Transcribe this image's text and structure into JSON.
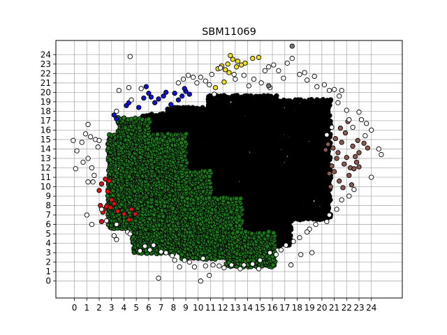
{
  "chart_data": {
    "type": "scatter",
    "title": "SBM11069",
    "xlabel": "",
    "ylabel": "",
    "xlim": [
      -1.5,
      26.5
    ],
    "ylim": [
      -1.8,
      25.5
    ],
    "xticks": [
      0,
      1,
      2,
      3,
      4,
      5,
      6,
      7,
      8,
      9,
      10,
      11,
      12,
      13,
      14,
      15,
      16,
      17,
      18,
      19,
      20,
      21,
      22,
      23,
      24
    ],
    "yticks": [
      0,
      1,
      2,
      3,
      4,
      5,
      6,
      7,
      8,
      9,
      10,
      11,
      12,
      13,
      14,
      15,
      16,
      17,
      18,
      19,
      20,
      21,
      22,
      23,
      24
    ],
    "grid": true,
    "legend": "none",
    "colors": {
      "black": "#000000",
      "green": "#1a7a1a",
      "blue": "#1010d0",
      "yellow": "#f0e020",
      "red": "#e01010",
      "brown": "#8c5a50",
      "white": "#ffffff",
      "gray": "#777777",
      "grid": "#b0b0b0"
    },
    "series": [
      {
        "color": "black",
        "regions": [
          {
            "x": [
              10.8,
              16.5
            ],
            "y": [
              4.6,
              19.6
            ]
          },
          {
            "x": [
              16.2,
              20.6
            ],
            "y": [
              6.6,
              19.2
            ]
          },
          {
            "x": [
              12.6,
              17.6
            ],
            "y": [
              3.8,
              9.5
            ]
          },
          {
            "x": [
              7.6,
              11.8
            ],
            "y": [
              10.6,
              18.4
            ]
          },
          {
            "x": [
              5.6,
              9.4
            ],
            "y": [
              15.4,
              17.6
            ]
          },
          {
            "x": [
              18.6,
              20.4
            ],
            "y": [
              9.0,
              13.6
            ]
          }
        ]
      },
      {
        "color": "green",
        "regions": [
          {
            "x": [
              4.8,
              11.0
            ],
            "y": [
              3.0,
              11.6
            ]
          },
          {
            "x": [
              2.8,
              9.0
            ],
            "y": [
              5.6,
              15.6
            ]
          },
          {
            "x": [
              8.8,
              13.6
            ],
            "y": [
              2.4,
              8.8
            ]
          },
          {
            "x": [
              12.4,
              16.2
            ],
            "y": [
              1.6,
              5.2
            ]
          },
          {
            "x": [
              5.0,
              8.8
            ],
            "y": [
              11.0,
              15.0
            ]
          },
          {
            "x": [
              3.6,
              6.2
            ],
            "y": [
              15.0,
              17.4
            ]
          }
        ]
      },
      {
        "color": "blue",
        "points": [
          [
            3.2,
            17.6
          ],
          [
            3.4,
            17.2
          ],
          [
            4.2,
            18.6
          ],
          [
            4.4,
            18.9
          ],
          [
            5.2,
            18.4
          ],
          [
            5.6,
            19.4
          ],
          [
            5.8,
            20.6
          ],
          [
            6.0,
            19.9
          ],
          [
            6.2,
            19.5
          ],
          [
            6.5,
            18.9
          ],
          [
            6.8,
            19.3
          ],
          [
            7.2,
            19.6
          ],
          [
            7.4,
            20.0
          ],
          [
            7.8,
            18.7
          ],
          [
            8.1,
            19.9
          ],
          [
            8.4,
            19.2
          ],
          [
            8.7,
            19.6
          ],
          [
            9.0,
            20.1
          ],
          [
            9.3,
            19.8
          ],
          [
            8.9,
            20.4
          ]
        ]
      },
      {
        "color": "yellow",
        "points": [
          [
            11.6,
            22.5
          ],
          [
            11.9,
            22.8
          ],
          [
            12.2,
            22.4
          ],
          [
            12.4,
            23.0
          ],
          [
            12.6,
            23.9
          ],
          [
            12.8,
            23.5
          ],
          [
            13.2,
            23.3
          ],
          [
            13.5,
            22.9
          ],
          [
            13.8,
            23.1
          ],
          [
            14.4,
            23.6
          ],
          [
            14.9,
            23.7
          ],
          [
            12.1,
            21.1
          ],
          [
            11.4,
            20.5
          ],
          [
            12.5,
            22.1
          ],
          [
            13.1,
            22.7
          ]
        ]
      },
      {
        "color": "red",
        "points": [
          [
            2.2,
            10.3
          ],
          [
            2.5,
            10.8
          ],
          [
            2.8,
            10.6
          ],
          [
            2.0,
            9.6
          ],
          [
            2.4,
            7.6
          ],
          [
            2.6,
            7.9
          ],
          [
            2.3,
            7.3
          ],
          [
            2.9,
            7.8
          ],
          [
            3.2,
            8.2
          ],
          [
            3.5,
            7.4
          ],
          [
            4.0,
            7.1
          ],
          [
            4.6,
            7.6
          ],
          [
            4.9,
            7.1
          ],
          [
            4.4,
            6.5
          ],
          [
            2.2,
            6.3
          ],
          [
            3.0,
            8.6
          ],
          [
            2.7,
            9.5
          ],
          [
            2.1,
            8.0
          ]
        ]
      },
      {
        "color": "brown",
        "points": [
          [
            20.5,
            14.5
          ],
          [
            20.9,
            14.1
          ],
          [
            21.3,
            13.6
          ],
          [
            21.6,
            14.7
          ],
          [
            21.2,
            13.0
          ],
          [
            20.8,
            12.2
          ],
          [
            21.0,
            11.6
          ],
          [
            21.4,
            10.6
          ],
          [
            20.7,
            10.0
          ],
          [
            21.8,
            12.4
          ],
          [
            22.0,
            13.1
          ],
          [
            22.3,
            12.0
          ],
          [
            22.2,
            11.2
          ],
          [
            22.5,
            14.3
          ],
          [
            22.7,
            13.2
          ],
          [
            22.8,
            12.6
          ],
          [
            22.6,
            11.9
          ],
          [
            23.0,
            13.6
          ],
          [
            23.4,
            14.6
          ],
          [
            23.7,
            14.1
          ],
          [
            21.9,
            15.7
          ],
          [
            21.5,
            16.2
          ],
          [
            22.1,
            16.9
          ],
          [
            20.3,
            13.9
          ],
          [
            20.6,
            11.4
          ],
          [
            21.7,
            9.9
          ],
          [
            22.4,
            10.2
          ],
          [
            21.1,
            15.1
          ],
          [
            23.0,
            12.1
          ],
          [
            22.9,
            14.9
          ]
        ]
      },
      {
        "color": "white",
        "points": [
          [
            -0.1,
            14.9
          ],
          [
            0.2,
            13.8
          ],
          [
            0.1,
            11.9
          ],
          [
            0.7,
            12.6
          ],
          [
            1.1,
            13.0
          ],
          [
            1.4,
            12.0
          ],
          [
            1.6,
            11.2
          ],
          [
            1.1,
            10.5
          ],
          [
            1.5,
            10.5
          ],
          [
            0.9,
            15.6
          ],
          [
            1.3,
            15.3
          ],
          [
            1.7,
            15.0
          ],
          [
            1.9,
            14.2
          ],
          [
            1.1,
            16.6
          ],
          [
            2.0,
            14.9
          ],
          [
            0.6,
            14.7
          ],
          [
            1.0,
            7.0
          ],
          [
            1.4,
            6.0
          ],
          [
            2.2,
            7.6
          ],
          [
            2.6,
            6.4
          ],
          [
            3.2,
            4.8
          ],
          [
            3.4,
            4.4
          ],
          [
            3.4,
            6.0
          ],
          [
            4.3,
            5.2
          ],
          [
            4.5,
            5.0
          ],
          [
            4.4,
            20.5
          ],
          [
            4.5,
            23.8
          ],
          [
            3.6,
            20.2
          ],
          [
            3.4,
            18.0
          ],
          [
            4.6,
            19.2
          ],
          [
            5.4,
            20.4
          ],
          [
            8.4,
            21.0
          ],
          [
            8.8,
            21.4
          ],
          [
            9.2,
            21.8
          ],
          [
            9.6,
            21.6
          ],
          [
            10.2,
            21.6
          ],
          [
            10.6,
            21.2
          ],
          [
            10.9,
            20.8
          ],
          [
            11.1,
            21.9
          ],
          [
            11.3,
            19.8
          ],
          [
            12.9,
            21.9
          ],
          [
            13.7,
            21.8
          ],
          [
            14.1,
            20.7
          ],
          [
            14.5,
            21.4
          ],
          [
            15.1,
            21.0
          ],
          [
            15.4,
            22.3
          ],
          [
            15.7,
            22.7
          ],
          [
            16.1,
            22.9
          ],
          [
            16.5,
            22.3
          ],
          [
            16.9,
            21.5
          ],
          [
            17.2,
            23.1
          ],
          [
            17.6,
            23.6
          ],
          [
            18.2,
            21.9
          ],
          [
            18.6,
            22.1
          ],
          [
            18.8,
            21.3
          ],
          [
            19.4,
            21.7
          ],
          [
            19.6,
            20.6
          ],
          [
            20.2,
            20.8
          ],
          [
            20.6,
            20.2
          ],
          [
            21.0,
            20.3
          ],
          [
            21.4,
            19.6
          ],
          [
            21.6,
            20.2
          ],
          [
            21.3,
            18.9
          ],
          [
            22.0,
            18.1
          ],
          [
            22.2,
            17.1
          ],
          [
            22.5,
            16.3
          ],
          [
            23.0,
            17.9
          ],
          [
            23.2,
            17.1
          ],
          [
            23.6,
            16.7
          ],
          [
            24.0,
            16.0
          ],
          [
            24.6,
            14.0
          ],
          [
            24.8,
            13.4
          ],
          [
            24.0,
            11.0
          ],
          [
            22.6,
            9.7
          ],
          [
            22.2,
            9.0
          ],
          [
            21.6,
            8.6
          ],
          [
            21.2,
            7.6
          ],
          [
            20.6,
            7.0
          ],
          [
            20.4,
            6.3
          ],
          [
            19.5,
            6.0
          ],
          [
            19.0,
            5.5
          ],
          [
            18.8,
            5.2
          ],
          [
            18.2,
            4.6
          ],
          [
            17.7,
            4.2
          ],
          [
            17.1,
            3.8
          ],
          [
            16.7,
            3.3
          ],
          [
            16.3,
            2.8
          ],
          [
            15.8,
            3.0
          ],
          [
            15.0,
            2.2
          ],
          [
            14.4,
            1.8
          ],
          [
            13.7,
            1.7
          ],
          [
            13.4,
            1.3
          ],
          [
            12.7,
            1.7
          ],
          [
            12.1,
            1.4
          ],
          [
            11.7,
            1.6
          ],
          [
            11.2,
            1.7
          ],
          [
            10.9,
            0.6
          ],
          [
            10.6,
            1.6
          ],
          [
            10.2,
            0.0
          ],
          [
            9.7,
            1.5
          ],
          [
            9.3,
            2.0
          ],
          [
            8.9,
            2.2
          ],
          [
            8.5,
            1.5
          ],
          [
            8.1,
            2.2
          ],
          [
            7.9,
            2.7
          ],
          [
            7.4,
            3.0
          ],
          [
            7.0,
            3.1
          ],
          [
            6.8,
            0.3
          ],
          [
            6.1,
            3.3
          ],
          [
            5.7,
            3.7
          ],
          [
            5.3,
            3.2
          ],
          [
            6.4,
            3.8
          ],
          [
            10.4,
            2.4
          ],
          [
            14.9,
            1.3
          ],
          [
            17.5,
            1.7
          ],
          [
            18.3,
            2.8
          ],
          [
            19.2,
            3.0
          ],
          [
            23.5,
            15.4
          ],
          [
            11.8,
            22.6
          ],
          [
            13.0,
            21.4
          ],
          [
            9.9,
            21.0
          ],
          [
            15.8,
            20.5
          ],
          [
            20.8,
            16.3
          ],
          [
            20.4,
            15.5
          ]
        ]
      },
      {
        "color": "gray",
        "points": [
          [
            17.6,
            24.9
          ],
          [
            15.7,
            20.7
          ]
        ]
      }
    ]
  }
}
